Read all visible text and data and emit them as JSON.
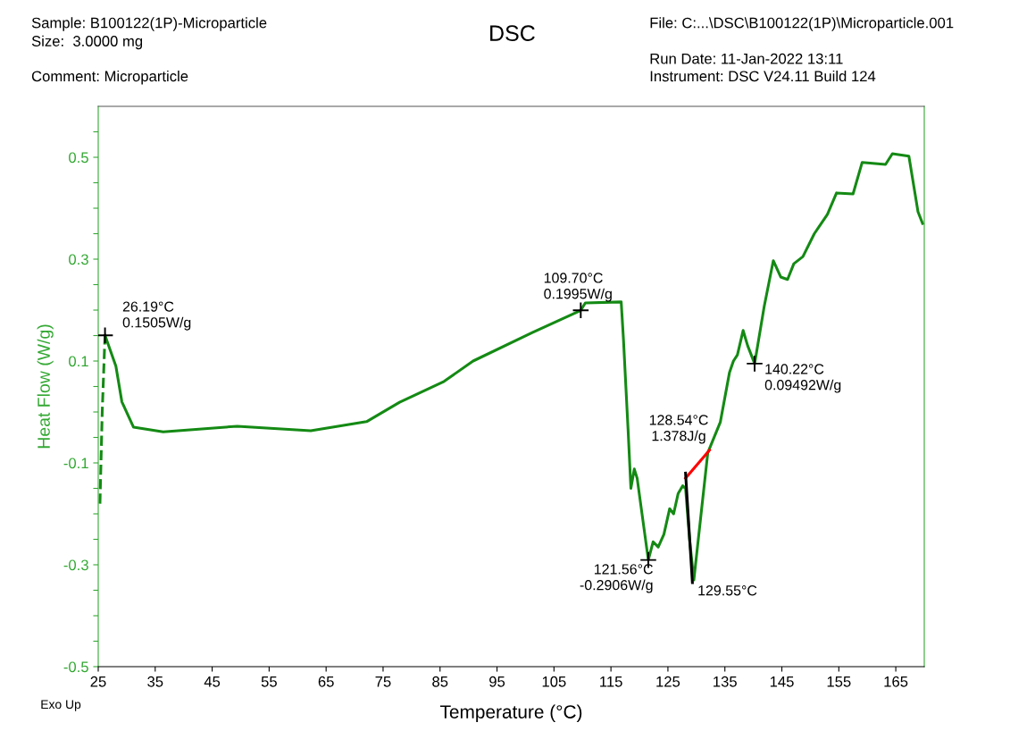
{
  "chart_data": {
    "type": "line",
    "title": "DSC",
    "xlabel": "Temperature (°C)",
    "ylabel": "Heat Flow (W/g)",
    "xlim": [
      25,
      170
    ],
    "xticks": [
      25,
      35,
      45,
      55,
      65,
      75,
      85,
      95,
      105,
      115,
      125,
      135,
      145,
      155,
      165
    ],
    "ylim": [
      -0.5,
      0.6
    ],
    "yticks": [
      -0.5,
      {
        "value": -0.45,
        "label": null
      },
      {
        "value": -0.4,
        "label": null
      },
      {
        "value": -0.35,
        "label": null
      },
      -0.3,
      {
        "value": -0.25,
        "label": null
      },
      {
        "value": -0.2,
        "label": null
      },
      {
        "value": -0.15,
        "label": null
      },
      -0.1,
      {
        "value": -0.05,
        "label": null
      },
      {
        "value": 0,
        "label": null
      },
      {
        "value": 0.05,
        "label": null
      },
      0.1,
      {
        "value": 0.15,
        "label": null
      },
      {
        "value": 0.2,
        "label": null
      },
      {
        "value": 0.25,
        "label": null
      },
      0.3,
      {
        "value": 0.35,
        "label": null
      },
      {
        "value": 0.4,
        "label": null
      },
      {
        "value": 0.45,
        "label": null
      },
      0.5,
      {
        "value": 0.55,
        "label": null
      }
    ],
    "grid": false,
    "legend": false,
    "line_style": "solid",
    "marker": "none",
    "series": [
      {
        "color": "#148a14",
        "x": [
          26.19,
          28.1,
          29.15,
          31.2,
          36.4,
          49.4,
          62.3,
          72.1,
          77.9,
          85.7,
          90.8,
          101.2,
          109.7,
          110.5,
          116.8,
          117.2,
          118.0,
          118.5,
          119.1,
          119.6,
          121.56,
          122.4,
          123.3,
          124.3,
          125.3,
          126.0,
          126.8,
          127.6,
          128.1,
          128.8,
          129.55,
          132.0,
          134.2,
          135.8,
          136.5,
          137.2,
          138.2,
          139.0,
          140.22,
          141.9,
          143.5,
          144.8,
          146.0,
          147.1,
          148.7,
          150.7,
          153.0,
          154.6,
          157.5,
          159.1,
          163.2,
          164.4,
          167.3,
          168.9,
          169.7
        ],
        "values": [
          0.1505,
          0.09,
          0.02,
          -0.03,
          -0.039,
          -0.028,
          -0.037,
          -0.019,
          0.019,
          0.06,
          0.1,
          0.156,
          0.1995,
          0.214,
          0.216,
          0.142,
          -0.033,
          -0.15,
          -0.112,
          -0.13,
          -0.2906,
          -0.255,
          -0.265,
          -0.24,
          -0.19,
          -0.2,
          -0.16,
          -0.145,
          -0.15,
          -0.25,
          -0.33,
          -0.08,
          -0.02,
          0.077,
          0.1,
          0.112,
          0.16,
          0.13,
          0.09492,
          0.207,
          0.297,
          0.265,
          0.26,
          0.291,
          0.305,
          0.35,
          0.388,
          0.43,
          0.428,
          0.49,
          0.486,
          0.507,
          0.502,
          0.393,
          0.37
        ]
      },
      {
        "color": "#148a14",
        "line_style": "dashed",
        "x": [
          25.3,
          25.7,
          26.19
        ],
        "values": [
          -0.18,
          0.0,
          0.1505
        ]
      },
      {
        "color": "#ff0000",
        "x": [
          128.1,
          132.3
        ],
        "values": [
          -0.13,
          -0.075
        ]
      },
      {
        "color": "#000000",
        "x": [
          128.1,
          129.3
        ],
        "values": [
          -0.12,
          -0.335
        ]
      },
      {
        "type": "scatter",
        "color": "#000000",
        "marker": "cross",
        "x": [
          26.19,
          109.7,
          121.56,
          140.22
        ],
        "values": [
          0.1505,
          0.1995,
          -0.2906,
          0.09492
        ]
      }
    ],
    "annotations": [
      {
        "text": "26.19°C\n0.1505W/g",
        "x": 26.19,
        "y": 0.1505
      },
      {
        "text": "109.70°C\n0.1995W/g",
        "x": 109.7,
        "y": 0.1995
      },
      {
        "text": "121.56°C\n-0.2906W/g",
        "x": 121.56,
        "y": -0.2906
      },
      {
        "text": "140.22°C\n0.09492W/g",
        "x": 140.22,
        "y": 0.09492
      },
      {
        "text": "129.55°C",
        "x": 129.55,
        "y": -0.33
      },
      "128.54°C\n1.378J/g",
      "Sample: B100122(1P)-Microparticle",
      "Size:  3.0000 mg",
      "Comment: Microparticle",
      "File: C:...\\DSC\\B100122(1P)\\Microparticle.001",
      "Run Date: 11-Jan-2022 13:11",
      "Instrument: DSC V24.11 Build 124",
      "Exo Up"
    ]
  }
}
